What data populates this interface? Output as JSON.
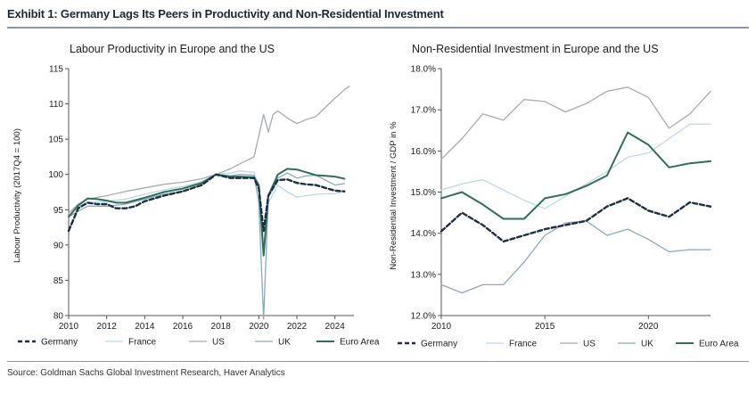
{
  "exhibit_title": "Exhibit 1: Germany Lags Its Peers in Productivity and Non-Residential Investment",
  "source": "Source: Goldman Sachs Global Investment Research, Haver Analytics",
  "colors": {
    "Germany": "#1b2f45",
    "France": "#b9dbe6",
    "US": "#a6acb0",
    "UK": "#8aaabb",
    "Euro Area": "#2f6f58"
  },
  "chart_data": [
    {
      "type": "line",
      "title": "Labour Productivity in Europe and the US",
      "xlabel": "",
      "ylabel": "Labour Productivity (2017Q4 = 100)",
      "xlim": [
        2010,
        2025
      ],
      "ylim": [
        80,
        115
      ],
      "x_ticks": [
        "2010",
        "2012",
        "2014",
        "2016",
        "2018",
        "2020",
        "2022",
        "2024"
      ],
      "y_ticks": [
        "80",
        "85",
        "90",
        "95",
        "100",
        "105",
        "110",
        "115"
      ],
      "series": [
        {
          "name": "Germany",
          "x": [
            2010,
            2010.5,
            2011,
            2011.5,
            2012,
            2012.5,
            2013,
            2013.5,
            2014,
            2015,
            2016,
            2017,
            2017.75,
            2018.5,
            2019,
            2019.75,
            2020,
            2020.25,
            2020.5,
            2021,
            2021.5,
            2022,
            2022.5,
            2023,
            2023.5,
            2024,
            2024.5
          ],
          "y": [
            92,
            95.2,
            96,
            95.8,
            95.8,
            95.2,
            95.2,
            95.5,
            96.2,
            97,
            97.6,
            98.5,
            100,
            99.5,
            99.5,
            99.5,
            98,
            92,
            97,
            99.2,
            99.3,
            98.8,
            98.6,
            98.5,
            98.1,
            97.7,
            97.6
          ]
        },
        {
          "name": "France",
          "x": [
            2010,
            2010.5,
            2011,
            2012,
            2013,
            2014,
            2015,
            2016,
            2017,
            2017.75,
            2018.5,
            2019,
            2019.75,
            2020,
            2020.25,
            2020.5,
            2021,
            2021.5,
            2022,
            2022.5,
            2023,
            2024,
            2024.5
          ],
          "y": [
            94,
            95.5,
            96,
            96.2,
            96.5,
            97.2,
            97.8,
            98.3,
            99,
            100,
            100.2,
            100.5,
            100.3,
            98,
            90,
            96,
            98.5,
            97.5,
            96.8,
            97,
            97.2,
            97.3,
            97.6
          ]
        },
        {
          "name": "US",
          "x": [
            2010,
            2010.5,
            2011,
            2012,
            2013,
            2014,
            2015,
            2016,
            2017,
            2017.75,
            2018.5,
            2019,
            2019.75,
            2020.25,
            2020.5,
            2020.75,
            2021,
            2021.5,
            2022,
            2022.5,
            2023,
            2023.5,
            2024,
            2024.5,
            2024.75
          ],
          "y": [
            94.5,
            95.8,
            96.5,
            97,
            97.6,
            98.1,
            98.6,
            98.9,
            99.4,
            100,
            100.8,
            101.5,
            102.5,
            108.5,
            106,
            108.5,
            109,
            108,
            107.2,
            107.8,
            108.2,
            109.5,
            110.8,
            112,
            112.5
          ]
        },
        {
          "name": "UK",
          "x": [
            2010,
            2010.5,
            2011,
            2012,
            2013,
            2014,
            2015,
            2016,
            2017,
            2017.75,
            2018.5,
            2019,
            2019.75,
            2020,
            2020.25,
            2020.5,
            2021,
            2021.5,
            2022,
            2022.5,
            2023,
            2024,
            2024.5
          ],
          "y": [
            94,
            94.8,
            95.5,
            95.5,
            95.8,
            96.5,
            97.2,
            97.6,
            98.6,
            100,
            99.8,
            100,
            99.9,
            96,
            79.5,
            97,
            99.5,
            100.2,
            99.5,
            99.8,
            99.9,
            98.5,
            98.7
          ]
        },
        {
          "name": "Euro Area",
          "x": [
            2010,
            2010.5,
            2011,
            2011.5,
            2012,
            2012.5,
            2013,
            2014,
            2015,
            2016,
            2017,
            2017.75,
            2018.5,
            2019,
            2019.75,
            2020,
            2020.25,
            2020.5,
            2021,
            2021.5,
            2022,
            2022.5,
            2023,
            2023.5,
            2024,
            2024.5
          ],
          "y": [
            94,
            95.6,
            96.6,
            96.5,
            96.3,
            96,
            96,
            96.7,
            97.5,
            98,
            98.8,
            100,
            99.7,
            99.7,
            99.6,
            98.5,
            88.5,
            97,
            100,
            100.8,
            100.7,
            100.3,
            99.9,
            99.8,
            99.7,
            99.4
          ]
        }
      ]
    },
    {
      "type": "line",
      "title": "Non-Residential Investment in Europe and the US",
      "xlabel": "",
      "ylabel": "Non-Residential Investment / GDP in %",
      "xlim": [
        2010,
        2023
      ],
      "ylim": [
        12.0,
        18.0
      ],
      "x_ticks": [
        "2010",
        "2015",
        "2020"
      ],
      "y_ticks": [
        "12.0%",
        "13.0%",
        "14.0%",
        "15.0%",
        "16.0%",
        "17.0%",
        "18.0%"
      ],
      "series": [
        {
          "name": "Germany",
          "x": [
            2010,
            2011,
            2012,
            2013,
            2014,
            2015,
            2016,
            2017,
            2018,
            2019,
            2020,
            2021,
            2022,
            2023
          ],
          "y": [
            14.05,
            14.5,
            14.2,
            13.8,
            13.95,
            14.1,
            14.2,
            14.3,
            14.65,
            14.85,
            14.55,
            14.4,
            14.75,
            14.65
          ]
        },
        {
          "name": "France",
          "x": [
            2010,
            2011,
            2012,
            2013,
            2014,
            2015,
            2016,
            2017,
            2018,
            2019,
            2020,
            2021,
            2022,
            2023
          ],
          "y": [
            15.05,
            15.2,
            15.3,
            15.05,
            14.8,
            14.6,
            14.9,
            15.2,
            15.5,
            15.85,
            15.95,
            16.3,
            16.65,
            16.65
          ]
        },
        {
          "name": "US",
          "x": [
            2010,
            2011,
            2012,
            2013,
            2014,
            2015,
            2016,
            2017,
            2018,
            2019,
            2020,
            2021,
            2022,
            2023
          ],
          "y": [
            15.8,
            16.3,
            16.9,
            16.75,
            17.25,
            17.2,
            16.95,
            17.15,
            17.45,
            17.55,
            17.3,
            16.55,
            16.9,
            17.45
          ]
        },
        {
          "name": "UK",
          "x": [
            2010,
            2011,
            2012,
            2013,
            2014,
            2015,
            2016,
            2017,
            2018,
            2019,
            2020,
            2021,
            2022,
            2023
          ],
          "y": [
            12.75,
            12.55,
            12.75,
            12.75,
            13.3,
            13.95,
            14.25,
            14.3,
            13.95,
            14.1,
            13.85,
            13.55,
            13.6,
            13.6
          ]
        },
        {
          "name": "Euro Area",
          "x": [
            2010,
            2011,
            2012,
            2013,
            2014,
            2015,
            2016,
            2017,
            2018,
            2019,
            2020,
            2021,
            2022,
            2023
          ],
          "y": [
            14.85,
            15.0,
            14.7,
            14.35,
            14.35,
            14.85,
            14.95,
            15.15,
            15.4,
            16.45,
            16.15,
            15.6,
            15.7,
            15.75
          ]
        }
      ]
    }
  ]
}
